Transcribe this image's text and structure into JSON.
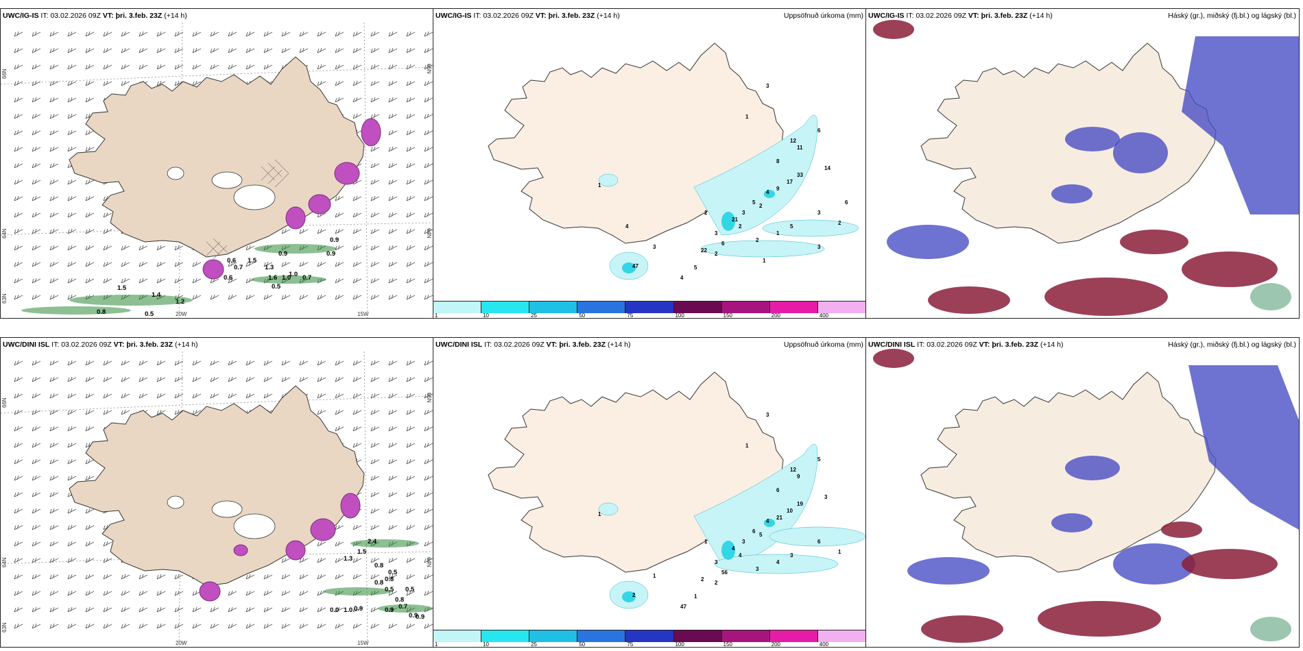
{
  "colors": {
    "land": "#f7ece0",
    "land_tan": "#e9d7c4",
    "coast": "#333333",
    "precip_light": "#c7f4f7",
    "precip_mid": "#33d6e6",
    "wind": "#555555",
    "blue_cloud": "#4a4fc4",
    "red_cloud": "#8a1e3a",
    "magenta": "#c050c0",
    "green": "#2f8a3a"
  },
  "legend_colors": [
    "#c2f5f7",
    "#27e6f0",
    "#1fbfe6",
    "#2a74e0",
    "#2636c4",
    "#6a0a52",
    "#a8147e",
    "#e61ca8",
    "#f2b0f0"
  ],
  "rows": [
    {
      "id": "row-top",
      "model": "UWC/IG-IS",
      "it_label": "IT:",
      "it_value": "03.02.2026 09Z",
      "vt_label": "VT:",
      "vt_value": "þri. 3.feb. 23Z",
      "lead": "(+14 h)",
      "precip_title": "Uppsöfnuð úrkoma (mm)",
      "cloud_title": "Háský (gr.), miðský (fj.bl.) og lágský (bl.)",
      "precip_labels": [
        "3",
        "1",
        "6",
        "12",
        "11",
        "8",
        "14",
        "33",
        "17",
        "9",
        "4",
        "5",
        "2",
        "3",
        "21",
        "2",
        "3",
        "2",
        "22",
        "6",
        "47",
        "4",
        "5",
        "2",
        "3",
        "1",
        "2",
        "1",
        "3",
        "5",
        "2",
        "3",
        "1",
        "6",
        "4"
      ],
      "wind_labels": [
        "0.6",
        "0.7",
        "0.6",
        "1.5",
        "1.3",
        "0.9",
        "0.9",
        "1.6",
        "1.0",
        "0.7",
        "1.0",
        "0.5",
        "0.9",
        "1.4",
        "1.2",
        "1.5",
        "0.5",
        "0.8"
      ],
      "axis": [
        "66N",
        "64N",
        "63N",
        "20W",
        "15W",
        "65N",
        "64N"
      ]
    },
    {
      "id": "row-bottom",
      "model": "UWC/DINI ISL",
      "it_label": "IT:",
      "it_value": "03.02.2026 09Z",
      "vt_label": "VT:",
      "vt_value": "þri. 3.feb. 23Z",
      "lead": "(+14 h)",
      "precip_title": "Uppsöfnuð úrkoma (mm)",
      "cloud_title": "Háský (gr.), miðský (fj.bl.) og lágský (bl.)",
      "precip_labels": [
        "3",
        "1",
        "5",
        "12",
        "9",
        "6",
        "3",
        "19",
        "10",
        "21",
        "4",
        "6",
        "5",
        "3",
        "4",
        "4",
        "3",
        "3",
        "2",
        "56",
        "2",
        "47",
        "1",
        "1",
        "1",
        "1",
        "2",
        "4",
        "6",
        "3",
        "1"
      ],
      "wind_labels": [
        "2.4",
        "1.5",
        "1.3",
        "0.8",
        "0.5",
        "0.8",
        "0.8",
        "0.5",
        "0.5",
        "0.0",
        "1.0",
        "0.9",
        "0.9",
        "0.9",
        "0.9",
        "0.7",
        "0.8"
      ],
      "axis": [
        "66N",
        "64N",
        "63N",
        "20W",
        "15W",
        "65N",
        "64N"
      ]
    }
  ],
  "legend_ticks": [
    "1",
    "10",
    "25",
    "50",
    "75",
    "100",
    "150",
    "200",
    "400"
  ]
}
